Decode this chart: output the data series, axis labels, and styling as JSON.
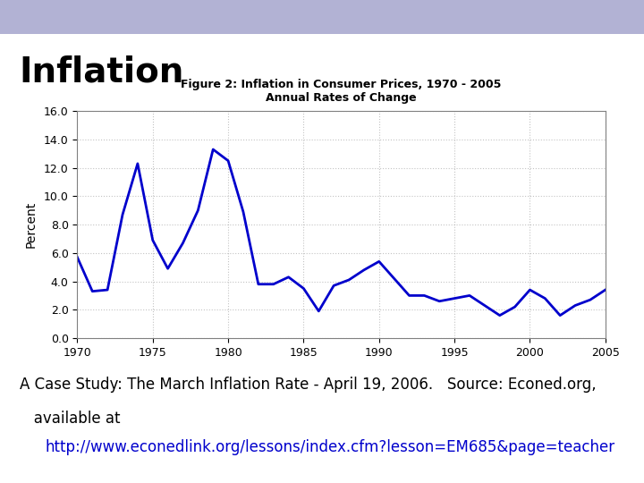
{
  "title_line1": "Figure 2: Inflation in Consumer Prices, 1970 - 2005",
  "title_line2": "Annual Rates of Change",
  "ylabel": "Percent",
  "xlim": [
    1970,
    2005
  ],
  "ylim": [
    0.0,
    16.0
  ],
  "xticks": [
    1970,
    1975,
    1980,
    1985,
    1990,
    1995,
    2000,
    2005
  ],
  "yticks": [
    0.0,
    2.0,
    4.0,
    6.0,
    8.0,
    10.0,
    12.0,
    14.0,
    16.0
  ],
  "years": [
    1970,
    1971,
    1972,
    1973,
    1974,
    1975,
    1976,
    1977,
    1978,
    1979,
    1980,
    1981,
    1982,
    1983,
    1984,
    1985,
    1986,
    1987,
    1988,
    1989,
    1990,
    1991,
    1992,
    1993,
    1994,
    1995,
    1996,
    1997,
    1998,
    1999,
    2000,
    2001,
    2002,
    2003,
    2004,
    2005
  ],
  "values": [
    5.7,
    3.3,
    3.4,
    8.7,
    12.3,
    6.9,
    4.9,
    6.7,
    9.0,
    13.3,
    12.5,
    8.9,
    3.8,
    3.8,
    4.3,
    3.5,
    1.9,
    3.7,
    4.1,
    4.8,
    5.4,
    4.2,
    3.0,
    3.0,
    2.6,
    2.8,
    3.0,
    2.3,
    1.6,
    2.2,
    3.4,
    2.8,
    1.6,
    2.3,
    2.7,
    3.4
  ],
  "line_color": "#0000CC",
  "line_width": 2.0,
  "chart_bg_color": "#FFFFFF",
  "grid_color": "#AAAAAA",
  "slide_title": "Inflation",
  "caption_line1": "A Case Study: The March Inflation Rate - April 19, 2006.   Source: Econed.org,",
  "caption_line2": "   available at",
  "caption_url": "http://www.econedlink.org/lessons/index.cfm?lesson=EM685&page=teacher",
  "slide_bg_color": "#FFFFFF",
  "slide_title_fontsize": 28,
  "caption_fontsize": 12
}
